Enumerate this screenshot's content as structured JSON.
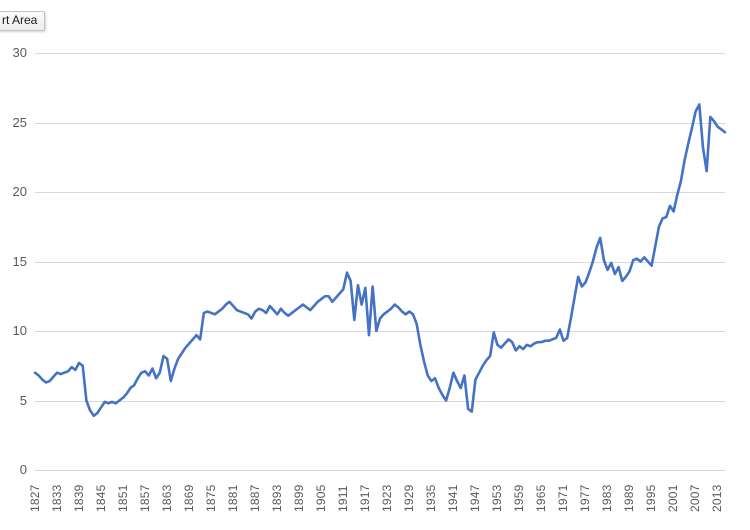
{
  "tooltip": {
    "label": "rt Area"
  },
  "chart_data": {
    "type": "line",
    "title": "",
    "legend": "none",
    "grid": "horizontal-only",
    "line_color": "#4472C4",
    "gridline_color": "#D9D9D9",
    "axis_label_color": "#595959",
    "background_color": "#FFFFFF",
    "ylim": [
      0,
      30
    ],
    "y_ticks": [
      "0",
      "5",
      "10",
      "15",
      "20",
      "25",
      "30"
    ],
    "x_range": [
      1827,
      2015
    ],
    "x_tick_interval_years": 6,
    "x_tick_labels": [
      "1827",
      "1833",
      "1839",
      "1845",
      "1851",
      "1857",
      "1863",
      "1869",
      "1875",
      "1881",
      "1887",
      "1893",
      "1899",
      "1905",
      "1911",
      "1917",
      "1923",
      "1929",
      "1935",
      "1941",
      "1947",
      "1953",
      "1959",
      "1965",
      "1971",
      "1977",
      "1983",
      "1989",
      "1995",
      "2001",
      "2007",
      "2013"
    ],
    "values": [
      7.0,
      6.8,
      6.5,
      6.3,
      6.4,
      6.7,
      7.0,
      6.9,
      7.0,
      7.1,
      7.4,
      7.2,
      7.7,
      7.5,
      5.0,
      4.3,
      3.9,
      4.1,
      4.5,
      4.9,
      4.8,
      4.9,
      4.8,
      5.0,
      5.2,
      5.5,
      5.9,
      6.1,
      6.6,
      7.0,
      7.1,
      6.8,
      7.3,
      6.6,
      7.0,
      8.2,
      8.0,
      6.4,
      7.3,
      8.0,
      8.4,
      8.8,
      9.1,
      9.4,
      9.7,
      9.4,
      11.3,
      11.4,
      11.3,
      11.2,
      11.4,
      11.6,
      11.9,
      12.1,
      11.8,
      11.5,
      11.4,
      11.3,
      11.2,
      10.9,
      11.4,
      11.6,
      11.5,
      11.3,
      11.8,
      11.5,
      11.2,
      11.6,
      11.3,
      11.1,
      11.3,
      11.5,
      11.7,
      11.9,
      11.7,
      11.5,
      11.8,
      12.1,
      12.3,
      12.5,
      12.5,
      12.1,
      12.4,
      12.7,
      13.0,
      14.2,
      13.6,
      10.8,
      13.3,
      11.9,
      13.1,
      9.7,
      13.2,
      10.0,
      10.9,
      11.2,
      11.4,
      11.6,
      11.9,
      11.7,
      11.4,
      11.2,
      11.4,
      11.2,
      10.5,
      9.0,
      7.8,
      6.8,
      6.4,
      6.6,
      5.9,
      5.4,
      5.0,
      5.9,
      7.0,
      6.4,
      5.9,
      6.8,
      4.4,
      4.2,
      6.5,
      7.0,
      7.5,
      7.9,
      8.2,
      9.9,
      9.0,
      8.8,
      9.1,
      9.4,
      9.2,
      8.6,
      8.9,
      8.7,
      9.0,
      8.9,
      9.1,
      9.2,
      9.2,
      9.3,
      9.3,
      9.4,
      9.5,
      10.1,
      9.3,
      9.5,
      10.9,
      12.4,
      13.9,
      13.2,
      13.5,
      14.2,
      15.0,
      16.0,
      16.7,
      15.1,
      14.4,
      14.9,
      14.1,
      14.6,
      13.6,
      13.9,
      14.3,
      15.1,
      15.2,
      15.0,
      15.3,
      15.0,
      14.7,
      16.1,
      17.5,
      18.1,
      18.2,
      19.0,
      18.6,
      19.8,
      20.8,
      22.3,
      23.5,
      24.6,
      25.8,
      26.3,
      23.2,
      21.5,
      25.4,
      25.1,
      24.7,
      24.5,
      24.3
    ]
  }
}
